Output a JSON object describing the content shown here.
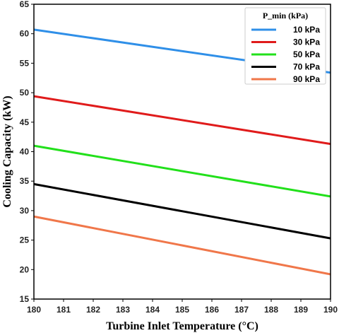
{
  "chart_data": {
    "type": "line",
    "title": "",
    "xlabel": "Turbine Inlet Temperature (°C)",
    "ylabel": "Cooling Capacity (kW)",
    "xlim": [
      180,
      190
    ],
    "ylim": [
      15,
      65
    ],
    "x_ticks": [
      180,
      181,
      182,
      183,
      184,
      185,
      186,
      187,
      188,
      189,
      190
    ],
    "y_ticks": [
      15,
      20,
      25,
      30,
      35,
      40,
      45,
      50,
      55,
      60,
      65
    ],
    "grid": false,
    "legend": {
      "title": "P_min (kPa)",
      "placement": "top-right"
    },
    "x": [
      180,
      190
    ],
    "series": [
      {
        "name": "10 kPa",
        "color": "#2f8fe8",
        "values": [
          60.7,
          53.4
        ]
      },
      {
        "name": "30 kPa",
        "color": "#e01b1b",
        "values": [
          49.4,
          41.3
        ]
      },
      {
        "name": "50 kPa",
        "color": "#22e01b",
        "values": [
          41.0,
          32.4
        ]
      },
      {
        "name": "70 kPa",
        "color": "#000000",
        "values": [
          34.5,
          25.3
        ]
      },
      {
        "name": "90 kPa",
        "color": "#f0774a",
        "values": [
          29.0,
          19.2
        ]
      }
    ]
  }
}
